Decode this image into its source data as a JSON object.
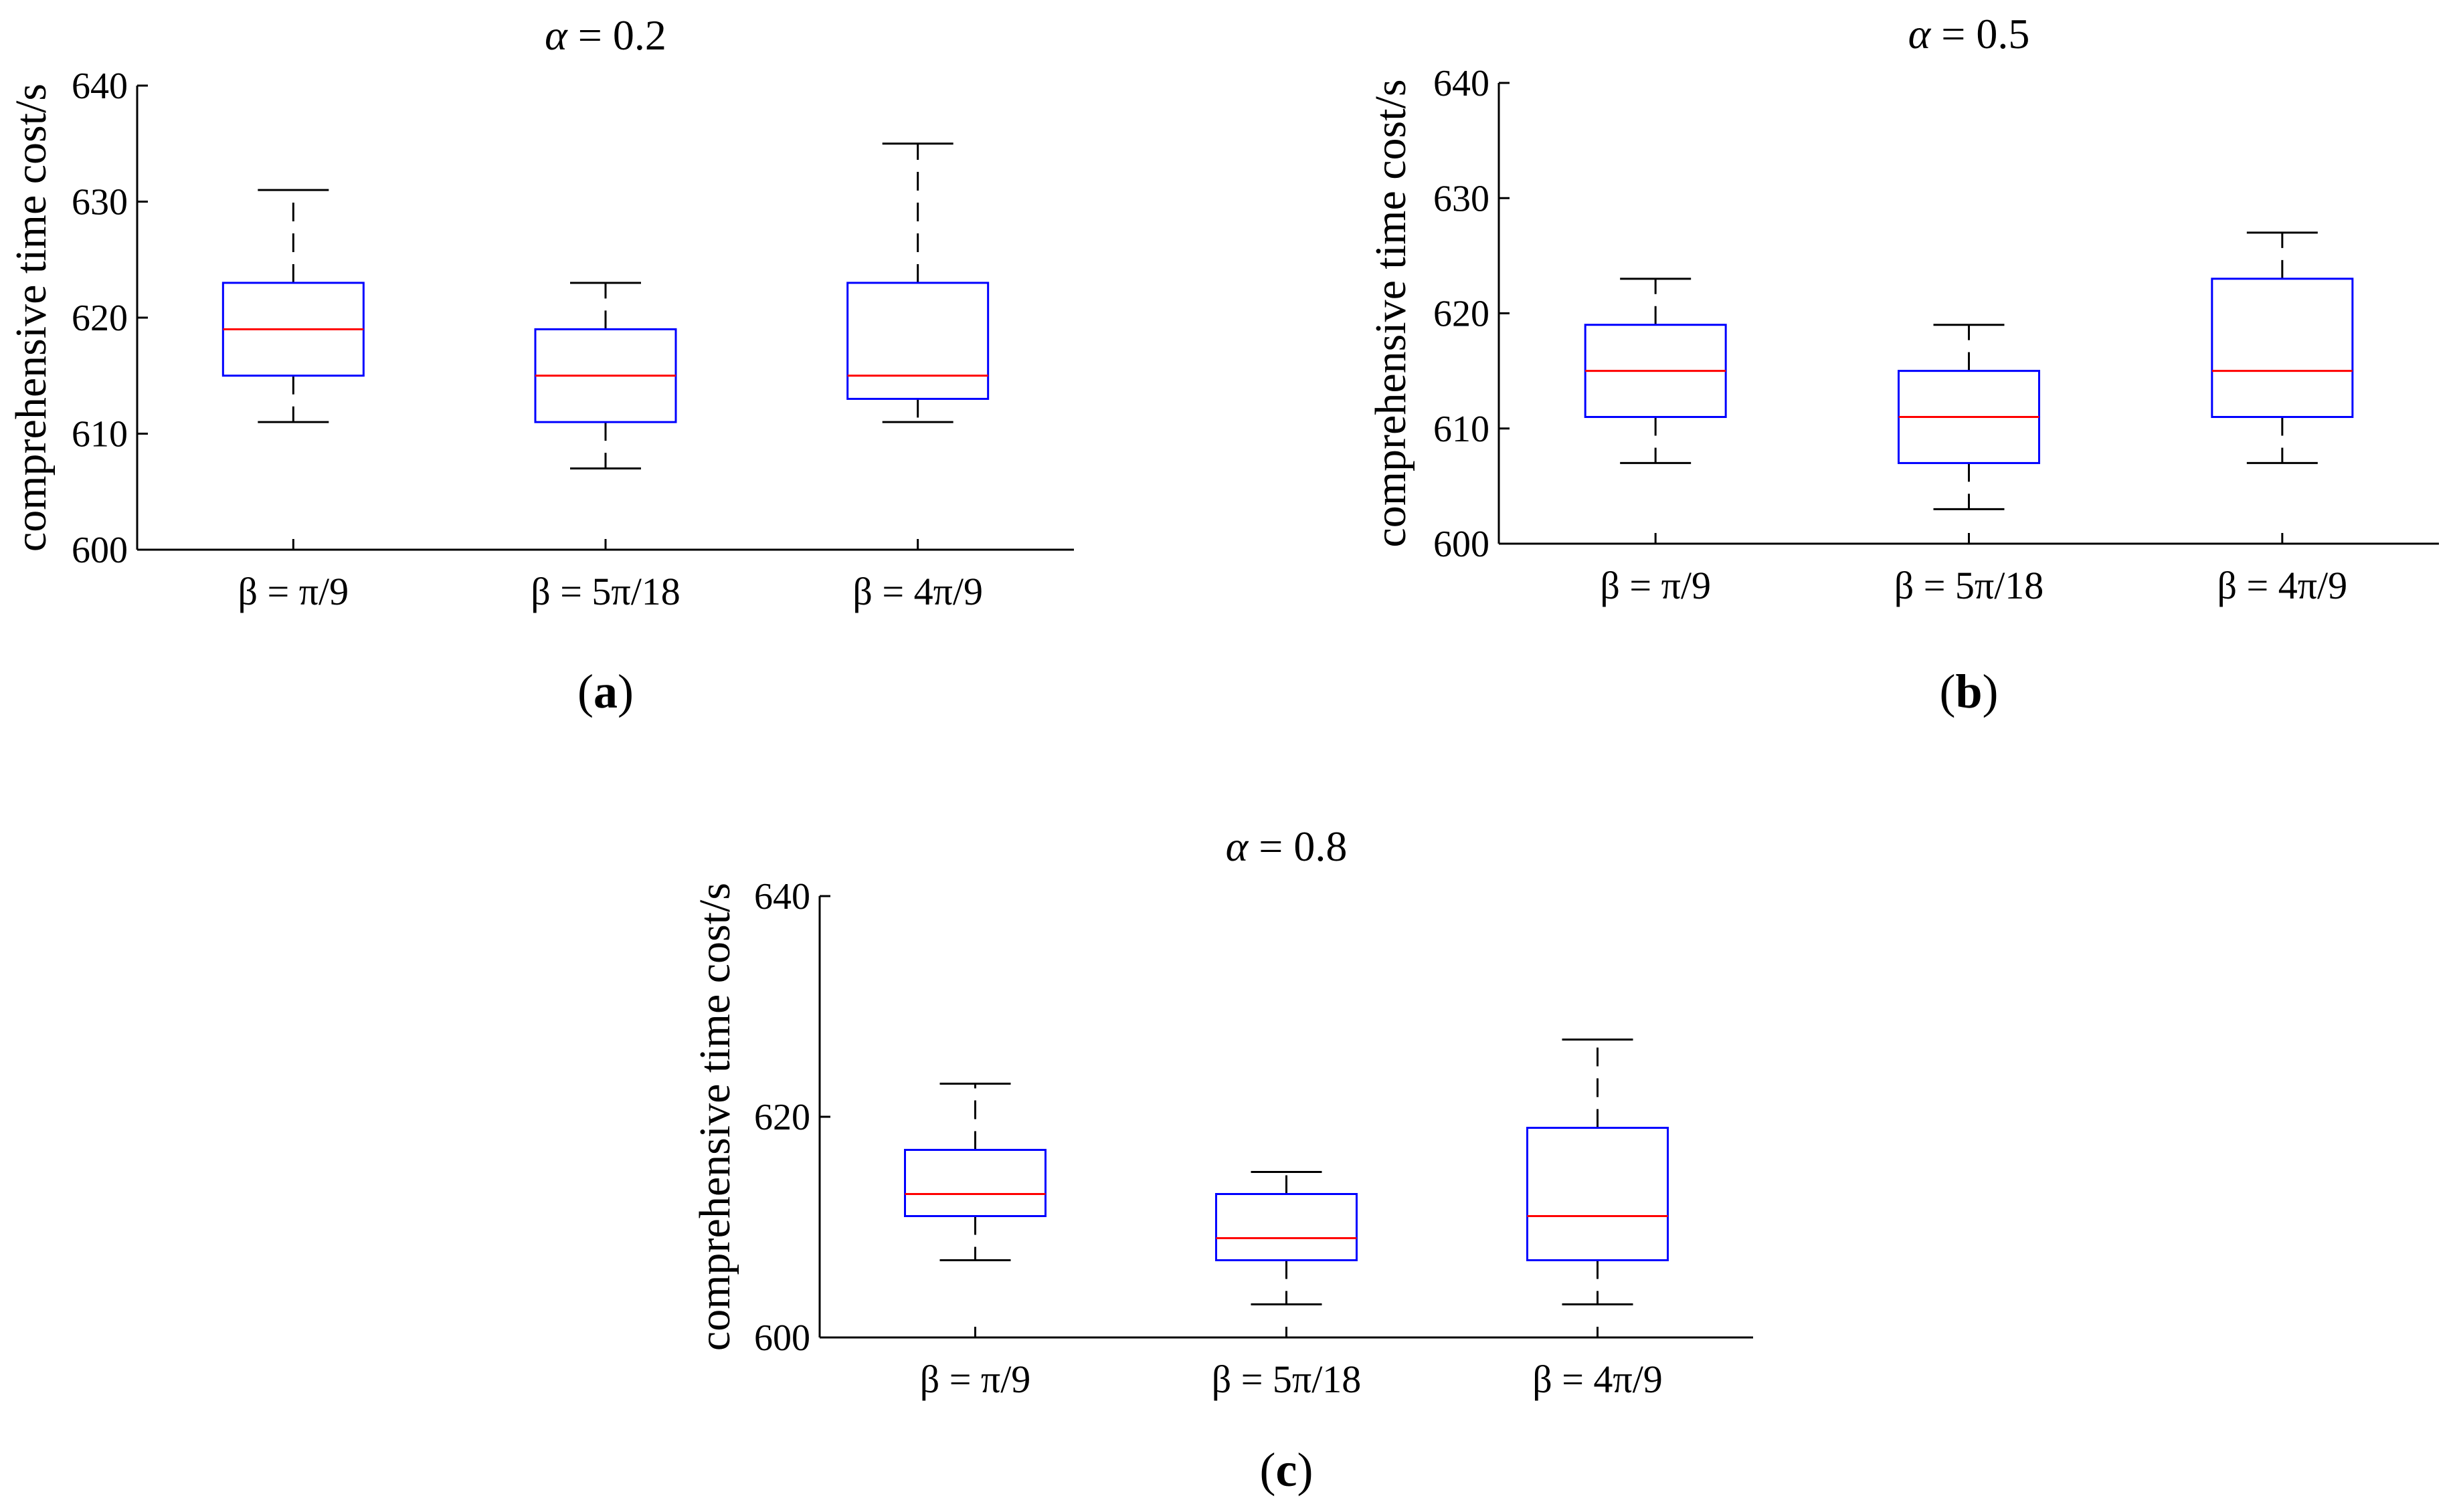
{
  "figure": {
    "colors": {
      "box": "#0000ff",
      "median": "#ff0000",
      "whisker": "#000000",
      "axis": "#000000"
    }
  },
  "chart_data": [
    {
      "type": "box",
      "panel_label": "a",
      "title": "α = 0.2",
      "title_symbol": "α",
      "title_value": " = 0.2",
      "xlabel": "",
      "ylabel": "comprehensive time cost/s",
      "ylim": [
        600,
        640
      ],
      "yticks": [
        600,
        610,
        620,
        630,
        640
      ],
      "categories": [
        "β = π/9",
        "β = 5π/18",
        "β = 4π/9"
      ],
      "series": [
        {
          "name": "β = π/9",
          "whisker_low": 611,
          "q1": 615,
          "median": 619,
          "q3": 623,
          "whisker_high": 631
        },
        {
          "name": "β = 5π/18",
          "whisker_low": 607,
          "q1": 611,
          "median": 615,
          "q3": 619,
          "whisker_high": 623
        },
        {
          "name": "β = 4π/9",
          "whisker_low": 611,
          "q1": 613,
          "median": 615,
          "q3": 623,
          "whisker_high": 635
        }
      ]
    },
    {
      "type": "box",
      "panel_label": "b",
      "title": "α = 0.5",
      "title_symbol": "α",
      "title_value": " = 0.5",
      "xlabel": "",
      "ylabel": "comprehensive time cost/s",
      "ylim": [
        600,
        640
      ],
      "yticks": [
        600,
        610,
        620,
        630,
        640
      ],
      "categories": [
        "β = π/9",
        "β = 5π/18",
        "β = 4π/9"
      ],
      "series": [
        {
          "name": "β = π/9",
          "whisker_low": 607,
          "q1": 611,
          "median": 615,
          "q3": 619,
          "whisker_high": 623
        },
        {
          "name": "β = 5π/18",
          "whisker_low": 603,
          "q1": 607,
          "median": 611,
          "q3": 615,
          "whisker_high": 619
        },
        {
          "name": "β = 4π/9",
          "whisker_low": 607,
          "q1": 611,
          "median": 615,
          "q3": 623,
          "whisker_high": 627
        }
      ]
    },
    {
      "type": "box",
      "panel_label": "c",
      "title": "α = 0.8",
      "title_symbol": "α",
      "title_value": " = 0.8",
      "xlabel": "",
      "ylabel": "comprehensive time cost/s",
      "ylim": [
        600,
        640
      ],
      "yticks": [
        600,
        620,
        640
      ],
      "categories": [
        "β = π/9",
        "β = 5π/18",
        "β = 4π/9"
      ],
      "series": [
        {
          "name": "β = π/9",
          "whisker_low": 607,
          "q1": 611,
          "median": 613,
          "q3": 617,
          "whisker_high": 623
        },
        {
          "name": "β = 5π/18",
          "whisker_low": 603,
          "q1": 607,
          "median": 609,
          "q3": 613,
          "whisker_high": 615
        },
        {
          "name": "β = 4π/9",
          "whisker_low": 603,
          "q1": 607,
          "median": 611,
          "q3": 619,
          "whisker_high": 627
        }
      ]
    }
  ]
}
